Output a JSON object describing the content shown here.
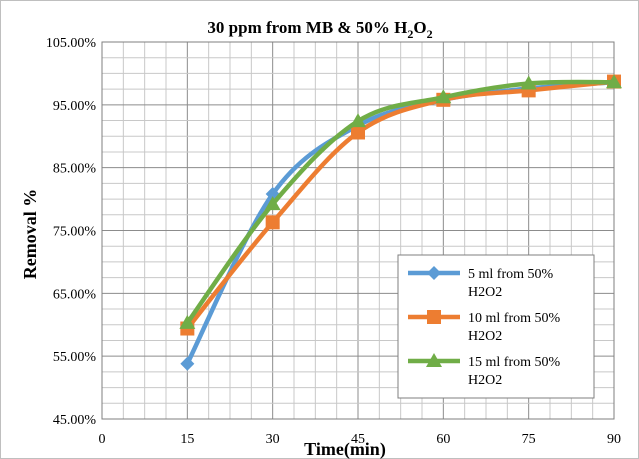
{
  "chart_data": {
    "type": "line",
    "title": {
      "main": "30 ppm from MB & 50% H",
      "sub1": "2",
      "mid": "O",
      "sub2": "2"
    },
    "xlabel": "Time(min)",
    "ylabel": "Removal %",
    "x": [
      15,
      30,
      45,
      60,
      75,
      90
    ],
    "xlim": [
      0,
      90
    ],
    "xticks": [
      "0",
      "15",
      "30",
      "45",
      "60",
      "75",
      "90"
    ],
    "ylim": [
      45,
      105
    ],
    "yticks": [
      "45.00%",
      "55.00%",
      "65.00%",
      "75.00%",
      "85.00%",
      "95.00%",
      "105.00%"
    ],
    "grid": true,
    "legend_position": "right",
    "series": [
      {
        "name": [
          "5 ml from 50%",
          "H2O2"
        ],
        "values": [
          53.8,
          80.8,
          91.7,
          95.8,
          97.6,
          98.6
        ],
        "color": "#5b9bd5",
        "marker": "diamond"
      },
      {
        "name": [
          "10 ml from 50%",
          "H2O2"
        ],
        "values": [
          59.4,
          76.3,
          90.6,
          95.8,
          97.3,
          98.7
        ],
        "color": "#ed7d31",
        "marker": "square"
      },
      {
        "name": [
          "15 ml from 50%",
          "H2O2"
        ],
        "values": [
          60.3,
          79.2,
          92.4,
          96.2,
          98.4,
          98.6
        ],
        "color": "#70ad47",
        "marker": "triangle"
      }
    ]
  }
}
